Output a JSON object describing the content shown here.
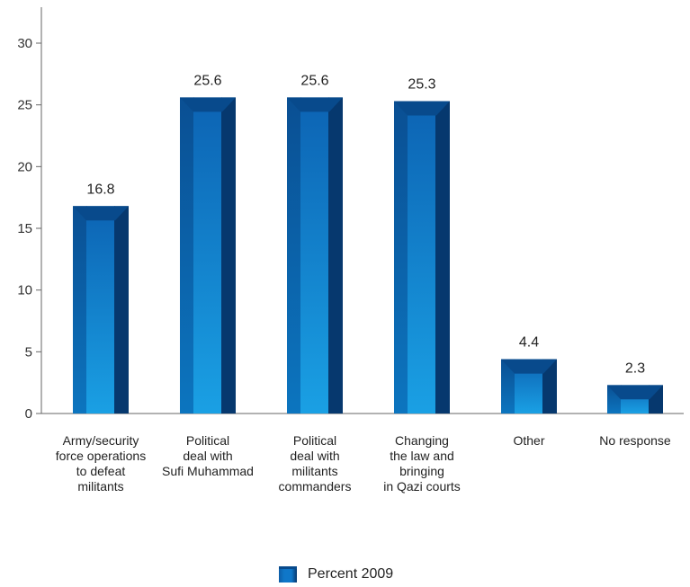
{
  "chart_data": {
    "type": "bar",
    "categories": [
      "Army/security force operations to defeat militants",
      "Political deal with Sufi Muhammad",
      "Political deal with militants commanders",
      "Changing the law and bringing in Qazi courts",
      "Other",
      "No response"
    ],
    "category_lines": [
      [
        "Army/security",
        "force operations",
        "to defeat",
        "militants"
      ],
      [
        "Political",
        "deal with",
        "Sufi Muhammad"
      ],
      [
        "Political",
        "deal with",
        "militants",
        "commanders"
      ],
      [
        "Changing",
        "the law and",
        "bringing",
        "in Qazi courts"
      ],
      [
        "Other"
      ],
      [
        "No response"
      ]
    ],
    "series": [
      {
        "name": "Percent 2009",
        "values": [
          16.8,
          25.6,
          25.6,
          25.3,
          4.4,
          2.3
        ]
      }
    ],
    "value_labels": [
      "16.8",
      "25.6",
      "25.6",
      "25.3",
      "4.4",
      "2.3"
    ],
    "ylim": [
      0,
      30
    ],
    "yticks": [
      0,
      5,
      10,
      15,
      20,
      25,
      30
    ],
    "ytick_labels": [
      "0",
      "5",
      "10",
      "15",
      "20",
      "25",
      "30"
    ],
    "title": "",
    "xlabel": "",
    "ylabel": "",
    "grid": false,
    "legend_position": "bottom-center",
    "colors": {
      "bar_main": "#0f77c9",
      "bar_light": "#1b9be0",
      "bar_dark": "#06386e",
      "bar_top": "#084a8c",
      "axis": "#666666"
    }
  },
  "legend": {
    "label": "Percent 2009"
  }
}
